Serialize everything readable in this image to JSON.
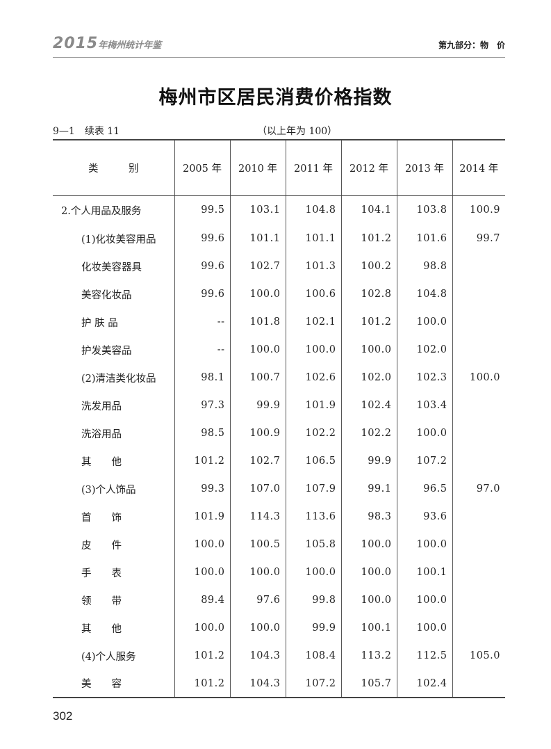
{
  "running_head": {
    "book_year": "2015",
    "book_name": "年梅州统计年鉴",
    "section": "第九部分：物　价"
  },
  "title": "梅州市区居民消费价格指数",
  "table_no": "9—1　续表 11",
  "base_note": "（以上年为 100）",
  "columns": [
    "类　　　别",
    "2005 年",
    "2010 年",
    "2011 年",
    "2012 年",
    "2013 年",
    "2014 年"
  ],
  "rows": [
    {
      "level": 1,
      "label": "2.个人用品及服务",
      "values": [
        "99.5",
        "103.1",
        "104.8",
        "104.1",
        "103.8",
        "100.9"
      ]
    },
    {
      "level": 2,
      "label": "(1)化妆美容用品",
      "values": [
        "99.6",
        "101.1",
        "101.1",
        "101.2",
        "101.6",
        "99.7"
      ]
    },
    {
      "level": 2,
      "label": "化妆美容器具",
      "values": [
        "99.6",
        "102.7",
        "101.3",
        "100.2",
        "98.8",
        ""
      ]
    },
    {
      "level": 2,
      "label": "美容化妆品",
      "values": [
        "99.6",
        "100.0",
        "100.6",
        "102.8",
        "104.8",
        ""
      ]
    },
    {
      "level": 2,
      "label": "护 肤 品",
      "values": [
        "--",
        "101.8",
        "102.1",
        "101.2",
        "100.0",
        ""
      ]
    },
    {
      "level": 2,
      "label": "护发美容品",
      "values": [
        "--",
        "100.0",
        "100.0",
        "100.0",
        "102.0",
        ""
      ]
    },
    {
      "level": 2,
      "label": "(2)清洁类化妆品",
      "values": [
        "98.1",
        "100.7",
        "102.6",
        "102.0",
        "102.3",
        "100.0"
      ]
    },
    {
      "level": 2,
      "label": "洗发用品",
      "values": [
        "97.3",
        "99.9",
        "101.9",
        "102.4",
        "103.4",
        ""
      ]
    },
    {
      "level": 2,
      "label": "洗浴用品",
      "values": [
        "98.5",
        "100.9",
        "102.2",
        "102.2",
        "100.0",
        ""
      ]
    },
    {
      "level": 2,
      "label": "其　　他",
      "values": [
        "101.2",
        "102.7",
        "106.5",
        "99.9",
        "107.2",
        ""
      ]
    },
    {
      "level": 2,
      "label": "(3)个人饰品",
      "values": [
        "99.3",
        "107.0",
        "107.9",
        "99.1",
        "96.5",
        "97.0"
      ]
    },
    {
      "level": 2,
      "label": "首　　饰",
      "values": [
        "101.9",
        "114.3",
        "113.6",
        "98.3",
        "93.6",
        ""
      ]
    },
    {
      "level": 2,
      "label": "皮　　件",
      "values": [
        "100.0",
        "100.5",
        "105.8",
        "100.0",
        "100.0",
        ""
      ]
    },
    {
      "level": 2,
      "label": "手　　表",
      "values": [
        "100.0",
        "100.0",
        "100.0",
        "100.0",
        "100.1",
        ""
      ]
    },
    {
      "level": 2,
      "label": "领　　带",
      "values": [
        "89.4",
        "97.6",
        "99.8",
        "100.0",
        "100.0",
        ""
      ]
    },
    {
      "level": 2,
      "label": "其　　他",
      "values": [
        "100.0",
        "100.0",
        "99.9",
        "100.1",
        "100.0",
        ""
      ]
    },
    {
      "level": 2,
      "label": "(4)个人服务",
      "values": [
        "101.2",
        "104.3",
        "108.4",
        "113.2",
        "112.5",
        "105.0"
      ]
    },
    {
      "level": 2,
      "label": "美　　容",
      "values": [
        "101.2",
        "104.3",
        "107.2",
        "105.7",
        "102.4",
        ""
      ]
    }
  ],
  "page_number": "302"
}
